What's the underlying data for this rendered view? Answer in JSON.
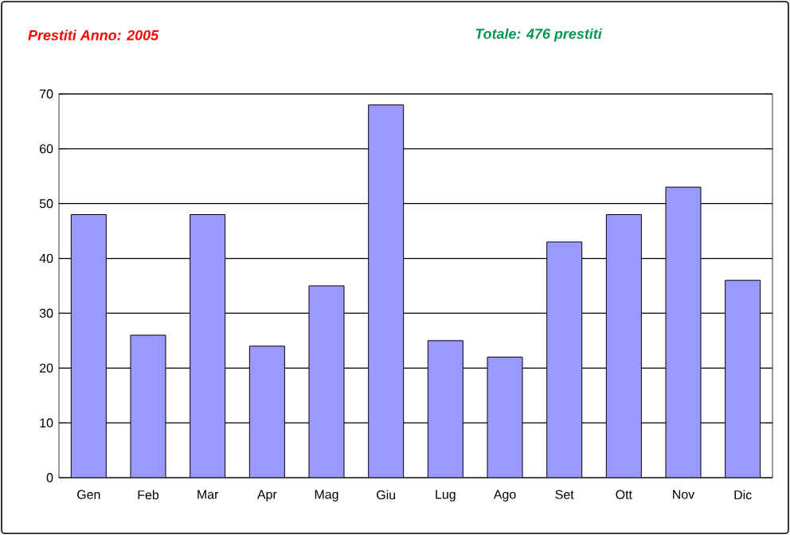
{
  "chart_data": {
    "type": "bar",
    "title": "Prestiti Anno: 2005",
    "subtitle": "Totale: 476 prestiti",
    "categories": [
      "Gen",
      "Feb",
      "Mar",
      "Apr",
      "Mag",
      "Giu",
      "Lug",
      "Ago",
      "Set",
      "Ott",
      "Nov",
      "Dic"
    ],
    "values": [
      48,
      26,
      48,
      24,
      35,
      68,
      25,
      22,
      43,
      48,
      53,
      36
    ],
    "color": "#9999ff",
    "ylim": [
      0,
      70
    ],
    "yticks": [
      0,
      10,
      20,
      30,
      40,
      50,
      60,
      70
    ],
    "grid": "y"
  }
}
